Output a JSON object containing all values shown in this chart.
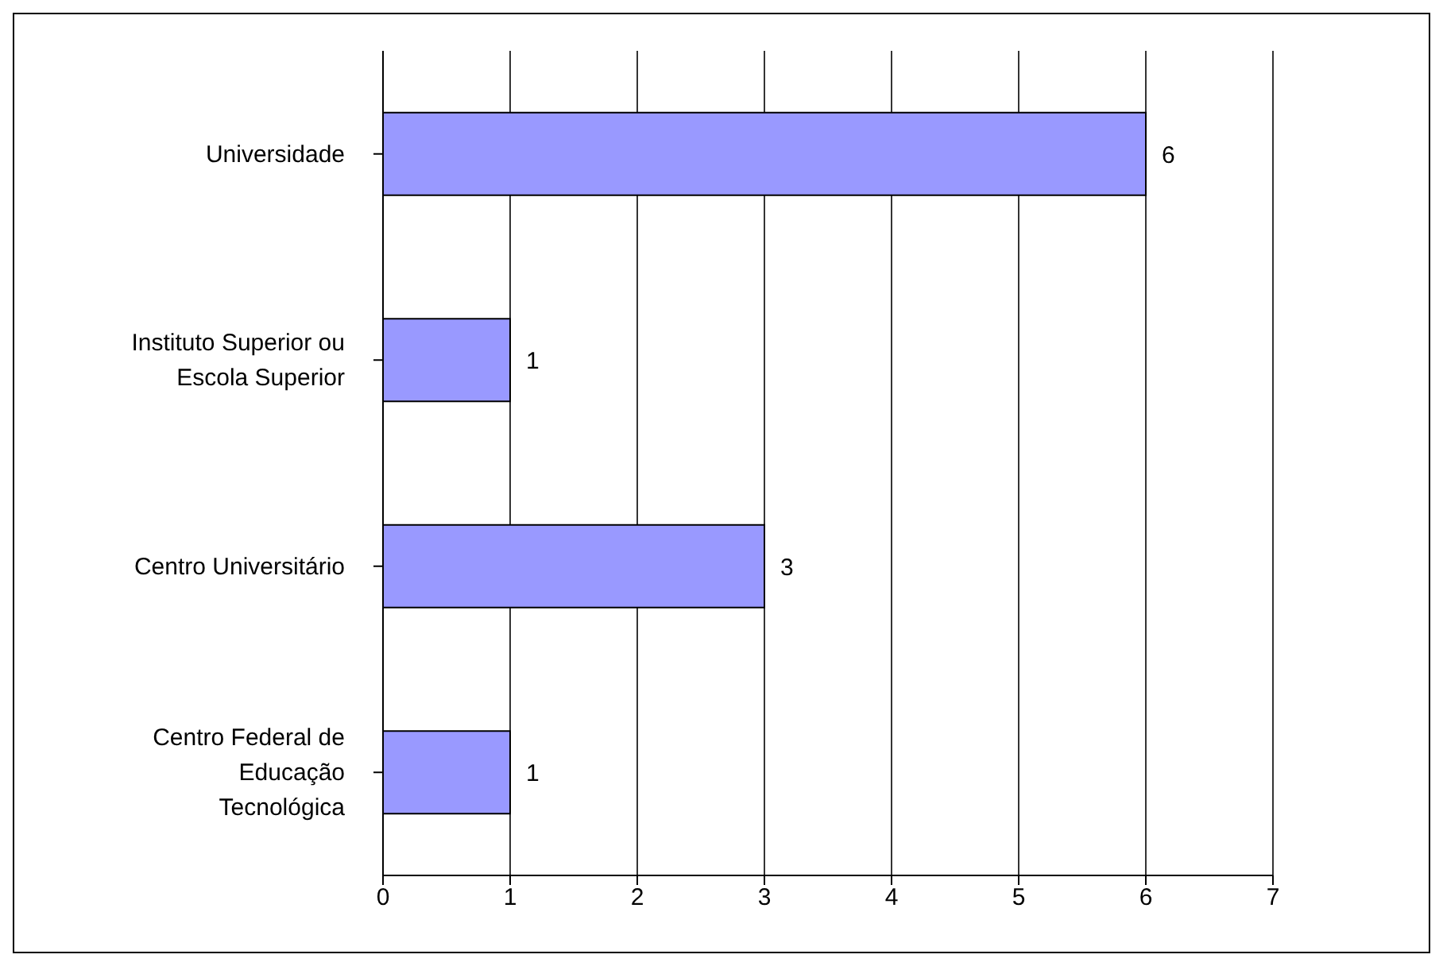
{
  "chart_data": {
    "type": "bar",
    "orientation": "horizontal",
    "categories": [
      "Universidade",
      "Instituto Superior ou Escola Superior",
      "Centro Universitário",
      "Centro Federal de Educação Tecnológica"
    ],
    "values": [
      6,
      1,
      3,
      1
    ],
    "color": "#9999ff",
    "xlim": [
      0,
      7
    ],
    "xticks": [
      0,
      1,
      2,
      3,
      4,
      5,
      6,
      7
    ],
    "grid": "x",
    "data_labels": true
  }
}
